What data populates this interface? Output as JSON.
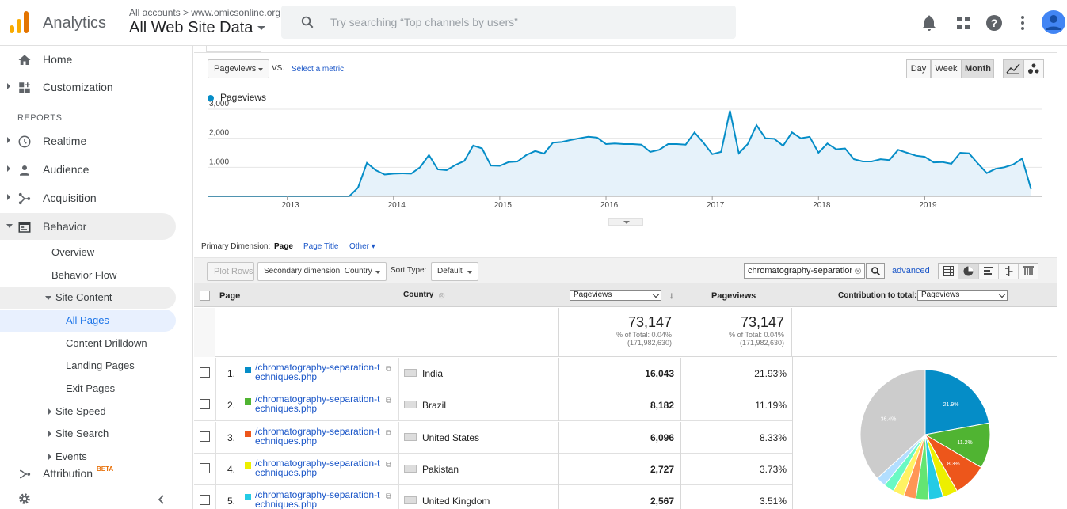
{
  "header": {
    "app_name": "Analytics",
    "breadcrumb": "All accounts > www.omicsonline.org",
    "view_name": "All Web Site Data",
    "search_placeholder": "Try searching “Top channels by users”"
  },
  "sidebar": {
    "items": [
      {
        "label": "Home",
        "icon": "home-icon"
      },
      {
        "label": "Customization",
        "icon": "customization-icon"
      }
    ],
    "reports_label": "REPORTS",
    "reports": [
      {
        "label": "Realtime",
        "icon": "clock-icon"
      },
      {
        "label": "Audience",
        "icon": "person-icon"
      },
      {
        "label": "Acquisition",
        "icon": "acquisition-icon"
      },
      {
        "label": "Behavior",
        "icon": "behavior-icon"
      }
    ],
    "behavior_sub": [
      "Overview",
      "Behavior Flow",
      "Site Content"
    ],
    "site_content_sub": [
      "All Pages",
      "Content Drilldown",
      "Landing Pages",
      "Exit Pages"
    ],
    "behavior_more": [
      "Site Speed",
      "Site Search",
      "Events"
    ],
    "attribution": "Attribution",
    "attribution_badge": "BETA"
  },
  "controls": {
    "metric_select": "Pageviews",
    "vs": "VS.",
    "select_metric": "Select a metric",
    "granularity": [
      "Day",
      "Week",
      "Month"
    ],
    "granularity_selected": "Month"
  },
  "chart_data": {
    "type": "area",
    "series": [
      {
        "name": "Pageviews",
        "color": "#058dc7"
      }
    ],
    "yticks": [
      "3,000",
      "2,000",
      "1,000"
    ],
    "ylim": [
      0,
      3000
    ],
    "xticks": [
      "2013",
      "2014",
      "2015",
      "2016",
      "2017",
      "2018",
      "2019"
    ],
    "x_start": "2012-01",
    "months": [
      "2012-01",
      "2012-02",
      "2012-03",
      "2012-04",
      "2012-05",
      "2012-06",
      "2012-07",
      "2012-08",
      "2012-09",
      "2012-10",
      "2012-11",
      "2012-12",
      "2013-01",
      "2013-02",
      "2013-03",
      "2013-04",
      "2013-05",
      "2013-06",
      "2013-07",
      "2013-08",
      "2013-09",
      "2013-10",
      "2013-11",
      "2013-12",
      "2014-01",
      "2014-02",
      "2014-03",
      "2014-04",
      "2014-05",
      "2014-06",
      "2014-07",
      "2014-08",
      "2014-09",
      "2014-10",
      "2014-11",
      "2014-12",
      "2015-01",
      "2015-02",
      "2015-03",
      "2015-04",
      "2015-05",
      "2015-06",
      "2015-07",
      "2015-08",
      "2015-09",
      "2015-10",
      "2015-11",
      "2015-12",
      "2016-01",
      "2016-02",
      "2016-03",
      "2016-04",
      "2016-05",
      "2016-06",
      "2016-07",
      "2016-08",
      "2016-09",
      "2016-10",
      "2016-11",
      "2016-12",
      "2017-01",
      "2017-02",
      "2017-03",
      "2017-04",
      "2017-05",
      "2017-06",
      "2017-07",
      "2017-08",
      "2017-09",
      "2017-10",
      "2017-11",
      "2017-12",
      "2018-01",
      "2018-02",
      "2018-03",
      "2018-04",
      "2018-05",
      "2018-06",
      "2018-07",
      "2018-08",
      "2018-09",
      "2018-10",
      "2018-11",
      "2018-12",
      "2019-01",
      "2019-02",
      "2019-03",
      "2019-04",
      "2019-05",
      "2019-06",
      "2019-07",
      "2019-08",
      "2019-09",
      "2019-10",
      "2019-11",
      "2019-12",
      "2020-01",
      "2020-02",
      "2020-03",
      "2020-04",
      "2020-05",
      "2020-06",
      "2020-07",
      "2020-08",
      "2020-09",
      "2020-10",
      "2020-11"
    ],
    "values": [
      0,
      0,
      0,
      0,
      0,
      0,
      0,
      0,
      0,
      0,
      0,
      0,
      0,
      0,
      0,
      0,
      0,
      0,
      0,
      0,
      0,
      0,
      0,
      0,
      0,
      0,
      0,
      0,
      0,
      0,
      0,
      0,
      0,
      0,
      0,
      0,
      0,
      0,
      0,
      0,
      0,
      0,
      0,
      0,
      0,
      0,
      0,
      0,
      0,
      0,
      0,
      0,
      0,
      0,
      0,
      0,
      0,
      0,
      0,
      0,
      0,
      0,
      0,
      0,
      0,
      0,
      0,
      0,
      0,
      0,
      0,
      0,
      0,
      0,
      0,
      0,
      0,
      0,
      0,
      0,
      0,
      0,
      0,
      0,
      0,
      0,
      0,
      0,
      0,
      0,
      0,
      0,
      0,
      0,
      0,
      0,
      0,
      0,
      0,
      0,
      0,
      0,
      0,
      0,
      0,
      0,
      0
    ]
  },
  "chart_points": [
    [
      "2013-08",
      0
    ],
    [
      "2013-09",
      300
    ],
    [
      "2013-10",
      1150
    ],
    [
      "2013-11",
      900
    ],
    [
      "2013-12",
      750
    ],
    [
      "2014-01",
      780
    ],
    [
      "2014-02",
      790
    ],
    [
      "2014-03",
      780
    ],
    [
      "2014-04",
      1000
    ],
    [
      "2014-05",
      1420
    ],
    [
      "2014-06",
      930
    ],
    [
      "2014-07",
      900
    ],
    [
      "2014-08",
      1080
    ],
    [
      "2014-09",
      1220
    ],
    [
      "2014-10",
      1750
    ],
    [
      "2014-11",
      1650
    ],
    [
      "2014-12",
      1060
    ],
    [
      "2015-01",
      1050
    ],
    [
      "2015-02",
      1180
    ],
    [
      "2015-03",
      1200
    ],
    [
      "2015-04",
      1420
    ],
    [
      "2015-05",
      1560
    ],
    [
      "2015-06",
      1470
    ],
    [
      "2015-07",
      1850
    ],
    [
      "2015-08",
      1870
    ],
    [
      "2015-09",
      1940
    ],
    [
      "2015-10",
      2000
    ],
    [
      "2015-11",
      2050
    ],
    [
      "2015-12",
      2020
    ],
    [
      "2016-01",
      1800
    ],
    [
      "2016-02",
      1820
    ],
    [
      "2016-03",
      1800
    ],
    [
      "2016-04",
      1800
    ],
    [
      "2016-05",
      1780
    ],
    [
      "2016-06",
      1530
    ],
    [
      "2016-07",
      1600
    ],
    [
      "2016-08",
      1800
    ],
    [
      "2016-09",
      1800
    ],
    [
      "2016-10",
      1780
    ],
    [
      "2016-11",
      2200
    ],
    [
      "2016-12",
      1850
    ],
    [
      "2017-01",
      1450
    ],
    [
      "2017-02",
      1530
    ],
    [
      "2017-03",
      2950
    ],
    [
      "2017-04",
      1480
    ],
    [
      "2017-05",
      1800
    ],
    [
      "2017-06",
      2450
    ],
    [
      "2017-07",
      2000
    ],
    [
      "2017-08",
      1980
    ],
    [
      "2017-09",
      1740
    ],
    [
      "2017-10",
      2200
    ],
    [
      "2017-11",
      2000
    ],
    [
      "2017-12",
      2050
    ],
    [
      "2018-01",
      1500
    ],
    [
      "2018-02",
      1820
    ],
    [
      "2018-03",
      1620
    ],
    [
      "2018-04",
      1650
    ],
    [
      "2018-05",
      1280
    ],
    [
      "2018-06",
      1200
    ],
    [
      "2018-07",
      1200
    ],
    [
      "2018-08",
      1280
    ],
    [
      "2018-09",
      1250
    ],
    [
      "2018-10",
      1600
    ],
    [
      "2018-11",
      1500
    ],
    [
      "2018-12",
      1400
    ],
    [
      "2019-01",
      1360
    ],
    [
      "2019-02",
      1170
    ],
    [
      "2019-03",
      1180
    ],
    [
      "2019-04",
      1120
    ],
    [
      "2019-05",
      1500
    ],
    [
      "2019-06",
      1480
    ],
    [
      "2019-07",
      1130
    ],
    [
      "2019-08",
      800
    ],
    [
      "2019-09",
      950
    ],
    [
      "2019-10",
      1000
    ],
    [
      "2019-11",
      1100
    ],
    [
      "2019-12",
      1300
    ],
    [
      "2020-01",
      250
    ]
  ],
  "primary_dimension": {
    "label": "Primary Dimension:",
    "options": [
      "Page",
      "Page Title",
      "Other"
    ]
  },
  "toolbar": {
    "plot_rows": "Plot Rows",
    "secondary_dim": "Secondary dimension: Country",
    "sort_type_label": "Sort Type:",
    "sort_type": "Default",
    "filter_value": "chromatography-separatior",
    "advanced": "advanced"
  },
  "table": {
    "headers": {
      "page": "Page",
      "country": "Country",
      "metric_select": "Pageviews",
      "metric2": "Pageviews",
      "contribution": "Contribution to total:",
      "contribution_select": "Pageviews"
    },
    "totals": {
      "value1": "73,147",
      "pct1": "% of Total: 0.04%",
      "total1": "(171,982,630)",
      "value2": "73,147",
      "pct2": "% of Total: 0.04%",
      "total2": "(171,982,630)"
    },
    "rows": [
      {
        "n": "1.",
        "page": "/chromatography-separation-techniques.php",
        "country": "India",
        "pageviews": "16,043",
        "pct": "21.93%",
        "color": "#058dc7"
      },
      {
        "n": "2.",
        "page": "/chromatography-separation-techniques.php",
        "country": "Brazil",
        "pageviews": "8,182",
        "pct": "11.19%",
        "color": "#50b432"
      },
      {
        "n": "3.",
        "page": "/chromatography-separation-techniques.php",
        "country": "United States",
        "pageviews": "6,096",
        "pct": "8.33%",
        "color": "#ed561b"
      },
      {
        "n": "4.",
        "page": "/chromatography-separation-techniques.php",
        "country": "Pakistan",
        "pageviews": "2,727",
        "pct": "3.73%",
        "color": "#edef00"
      },
      {
        "n": "5.",
        "page": "/chromatography-separation-techniques.php",
        "country": "United Kingdom",
        "pageviews": "2,567",
        "pct": "3.51%",
        "color": "#24cbe5"
      }
    ]
  },
  "pie": {
    "slices": [
      {
        "value": 21.9,
        "label": "21.9%",
        "color": "#058dc7"
      },
      {
        "value": 11.2,
        "label": "11.2%",
        "color": "#50b432"
      },
      {
        "value": 8.3,
        "label": "8.3%",
        "color": "#ed561b"
      },
      {
        "value": 3.7,
        "label": "",
        "color": "#edef00"
      },
      {
        "value": 3.5,
        "label": "",
        "color": "#24cbe5"
      },
      {
        "value": 3.2,
        "label": "",
        "color": "#64e572"
      },
      {
        "value": 3.0,
        "label": "",
        "color": "#ff9655"
      },
      {
        "value": 2.8,
        "label": "",
        "color": "#fff263"
      },
      {
        "value": 2.6,
        "label": "",
        "color": "#6af9c4"
      },
      {
        "value": 2.4,
        "label": "",
        "color": "#b2deff"
      },
      {
        "value": 36.4,
        "label": "36.4%",
        "color": "#cccccc"
      }
    ]
  }
}
